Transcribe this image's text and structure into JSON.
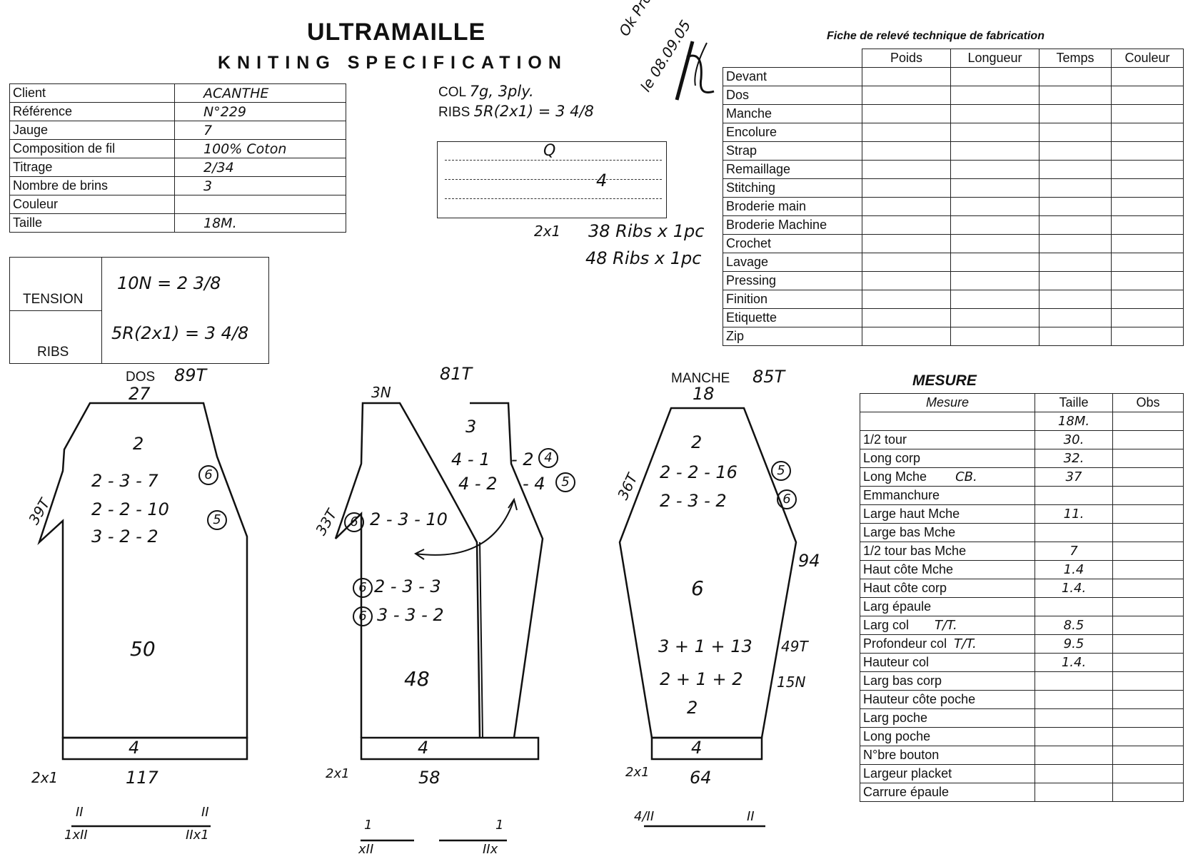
{
  "header": {
    "brand": "ULTRAMAILLE",
    "subtitle": "KNITING SPECIFICATION",
    "stamp_line1": "Ok Prod",
    "stamp_line2": "le 08.09.05"
  },
  "client_table": {
    "rows": [
      {
        "label": "Client",
        "value": "ACANTHE"
      },
      {
        "label": "Référence",
        "value": "N°229"
      },
      {
        "label": "Jauge",
        "value": "7"
      },
      {
        "label": "Composition de fil",
        "value": "100% Coton"
      },
      {
        "label": "Titrage",
        "value": "2/34"
      },
      {
        "label": "Nombre de brins",
        "value": "3"
      },
      {
        "label": "Couleur",
        "value": ""
      },
      {
        "label": "Taille",
        "value": "18M."
      }
    ]
  },
  "tension": {
    "label": "TENSION",
    "ribs_label": "RIBS",
    "tension_value": "10N = 2 3/8",
    "ribs_value": "5R(2x1) = 3 4/8"
  },
  "col": {
    "col_label": "COL",
    "col_value": "7g, 3ply.",
    "ribs_label": "RIBS",
    "ribs_value": "5R(2x1) = 3 4/8"
  },
  "q_box": {
    "letter": "Q",
    "value": "4",
    "ribs_type": "2x1",
    "note1": "38 Ribs x 1pc",
    "note2": "48 Ribs x 1pc"
  },
  "fiche": {
    "title": "Fiche de relevé technique de fabrication",
    "columns": [
      "Poids",
      "Longueur",
      "Temps",
      "Couleur"
    ],
    "rows": [
      "Devant",
      "Dos",
      "Manche",
      "Encolure",
      "Strap",
      "Remaillage",
      "Stitching",
      "Broderie main",
      "Broderie Machine",
      "Crochet",
      "Lavage",
      "Pressing",
      "Finition",
      "Etiquette",
      "Zip"
    ]
  },
  "dos": {
    "label": "DOS",
    "rows_total": "89T",
    "top_width": "27",
    "side_label": "39T",
    "instr1": "2",
    "instr2": "2 - 3 - 7",
    "instr2_circle": "6",
    "instr3": "2 - 2 - 10",
    "instr4": "3 - 2 - 2",
    "instr4_circle": "5",
    "body": "50",
    "rib": "4",
    "rib_type": "2x1",
    "bottom_width": "117",
    "foot_left_top": "II",
    "foot_left_bot": "1xII",
    "foot_right_top": "II",
    "foot_right_bot": "IIx1"
  },
  "devant": {
    "rows_total": "81T",
    "top_width": "3N",
    "neck1": "3",
    "neck2": "4 - 1",
    "neck2b": "- 2",
    "neck2_circle": "4",
    "neck3": "4 - 2",
    "neck3b": "- 4",
    "neck3_circle": "5",
    "side_label": "33T",
    "arm1_circle": "6",
    "arm1": "2 - 3 - 10",
    "arm2_circle": "6",
    "arm2": "2 - 3 - 3",
    "arm3_circle": "6",
    "arm3": "3 - 3 - 2",
    "body": "48",
    "rib": "4",
    "rib_type": "2x1",
    "bottom_width": "58",
    "foot_left_top": "1",
    "foot_left_bot": "xII",
    "foot_right_top": "1",
    "foot_right_bot": "IIx"
  },
  "manche": {
    "label": "MANCHE",
    "rows_total": "85T",
    "top_width": "18",
    "side_label": "36T",
    "instr1": "2",
    "instr2": "2 - 2 - 16",
    "instr2_circle": "5",
    "instr3": "2 - 3 - 2",
    "instr3_circle": "6",
    "right_label": "94",
    "body": "6",
    "inc1": "3 + 1 + 13",
    "inc1_note": "49T",
    "inc2": "2 + 1 + 2",
    "inc2_note": "15N",
    "inc3": "2",
    "rib": "4",
    "rib_type": "2x1",
    "bottom_width": "64",
    "foot_left": "4/II",
    "foot_right": "II"
  },
  "mesure": {
    "title": "MESURE",
    "columns": [
      "Mesure",
      "Taille",
      "Obs"
    ],
    "size": "18M.",
    "rows": [
      {
        "label": "1/2 tour",
        "value": "30.",
        "note": ""
      },
      {
        "label": "Long corp",
        "value": "32.",
        "note": ""
      },
      {
        "label": "Long Mche",
        "value": "37",
        "note": "CB."
      },
      {
        "label": "Emmanchure",
        "value": "",
        "note": ""
      },
      {
        "label": "Large haut Mche",
        "value": "11.",
        "note": ""
      },
      {
        "label": "Large bas Mche",
        "value": "",
        "note": ""
      },
      {
        "label": "1/2 tour bas Mche",
        "value": "7",
        "note": ""
      },
      {
        "label": "Haut côte Mche",
        "value": "1.4",
        "note": ""
      },
      {
        "label": "Haut côte corp",
        "value": "1.4.",
        "note": ""
      },
      {
        "label": "Larg épaule",
        "value": "",
        "note": ""
      },
      {
        "label": "Larg col",
        "value": "8.5",
        "note": "T/T."
      },
      {
        "label": "Profondeur col",
        "value": "9.5",
        "note": "T/T."
      },
      {
        "label": "Hauteur col",
        "value": "1.4.",
        "note": ""
      },
      {
        "label": "Larg bas corp",
        "value": "",
        "note": ""
      },
      {
        "label": "Hauteur côte poche",
        "value": "",
        "note": ""
      },
      {
        "label": "Larg poche",
        "value": "",
        "note": ""
      },
      {
        "label": "Long poche",
        "value": "",
        "note": ""
      },
      {
        "label": "N°bre bouton",
        "value": "",
        "note": ""
      },
      {
        "label": "Largeur placket",
        "value": "",
        "note": ""
      },
      {
        "label": "Carrure épaule",
        "value": "",
        "note": ""
      }
    ]
  }
}
